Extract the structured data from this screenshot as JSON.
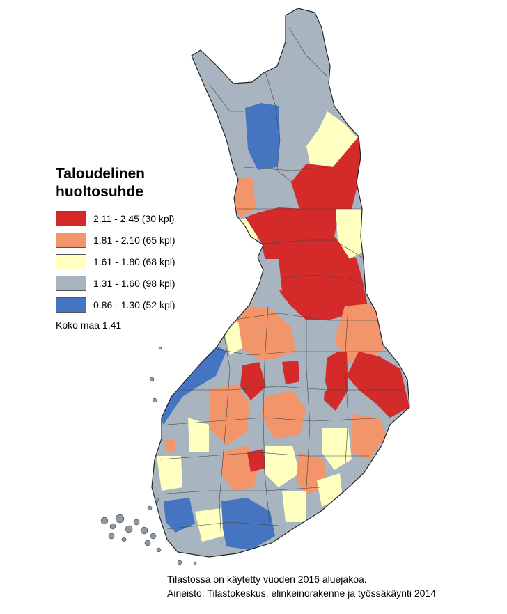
{
  "legend": {
    "title_line1": "Taloudelinen",
    "title_line2": "huoltosuhde",
    "classes": [
      {
        "label": "2.11 - 2.45 (30 kpl)",
        "color": "#d42a2a"
      },
      {
        "label": "1.81 - 2.10 (65 kpl)",
        "color": "#f2956a"
      },
      {
        "label": "1.61 - 1.80 (68 kpl)",
        "color": "#ffffc0"
      },
      {
        "label": "1.31 - 1.60 (98 kpl)",
        "color": "#a8b5c1"
      },
      {
        "label": "0.86 - 1.30 (52 kpl)",
        "color": "#4574c0"
      }
    ],
    "total": "Koko maa 1,41"
  },
  "footnote": {
    "line1": "Tilastossa on käytetty vuoden 2016 aluejakoa.",
    "line2": "Aineisto: Tilastokeskus, elinkeinorakenne ja työssäkäynti 2014"
  }
}
